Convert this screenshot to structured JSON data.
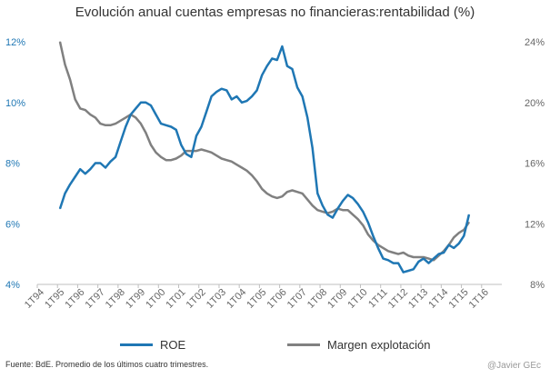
{
  "title": "Evolución anual cuentas empresas no financieras:rentabilidad  (%)",
  "footer": {
    "source": "Fuente: BdE. Promedio  de los últimos cuatro trimestres.",
    "credit": "@Javier GEc"
  },
  "colors": {
    "roe": "#1f77b4",
    "margin": "#808080",
    "axis": "#bfbfbf",
    "text": "#666666"
  },
  "chart_data": {
    "type": "line",
    "title": "Evolución anual cuentas empresas no financieras:rentabilidad  (%)",
    "x_labels": [
      "1T94",
      "1T95",
      "1T96",
      "1T97",
      "1T98",
      "1T99",
      "1T00",
      "1T01",
      "1T02",
      "1T03",
      "1T04",
      "1T05",
      "1T06",
      "1T07",
      "1T08",
      "1T09",
      "1T10",
      "1T11",
      "1T12",
      "1T13",
      "1T14",
      "1T15",
      "1T16"
    ],
    "quarters_total": 92,
    "y_left": {
      "min": 4,
      "max": 12,
      "ticks": [
        "4%",
        "6%",
        "8%",
        "10%",
        "12%"
      ],
      "tick_values": [
        4,
        6,
        8,
        10,
        12
      ]
    },
    "y_right": {
      "min": 8,
      "max": 24,
      "ticks": [
        "8%",
        "12%",
        "16%",
        "20%",
        "24%"
      ],
      "tick_values": [
        8,
        12,
        16,
        20,
        24
      ]
    },
    "legend": [
      "ROE",
      "Margen explotación"
    ],
    "series": [
      {
        "name": "ROE",
        "axis": "left",
        "start_index": 4,
        "values": [
          6.5,
          7.0,
          7.3,
          7.55,
          7.8,
          7.65,
          7.8,
          8.0,
          8.0,
          7.85,
          8.05,
          8.2,
          8.7,
          9.2,
          9.6,
          9.8,
          10.0,
          10.0,
          9.9,
          9.6,
          9.3,
          9.25,
          9.2,
          9.1,
          8.6,
          8.3,
          8.2,
          8.9,
          9.2,
          9.7,
          10.2,
          10.35,
          10.45,
          10.4,
          10.1,
          10.2,
          10.0,
          10.05,
          10.2,
          10.4,
          10.9,
          11.2,
          11.45,
          11.4,
          11.85,
          11.2,
          11.1,
          10.5,
          10.2,
          9.5,
          8.5,
          7.0,
          6.6,
          6.3,
          6.2,
          6.5,
          6.75,
          6.95,
          6.85,
          6.65,
          6.4,
          6.05,
          5.6,
          5.2,
          4.85,
          4.8,
          4.7,
          4.7,
          4.4,
          4.45,
          4.5,
          4.75,
          4.85,
          4.7,
          4.85,
          5.0,
          5.05,
          5.3,
          5.2,
          5.35,
          5.6,
          6.3
        ]
      },
      {
        "name": "Margen explotación",
        "axis": "right",
        "start_index": 4,
        "values": [
          24.0,
          22.5,
          21.5,
          20.2,
          19.6,
          19.5,
          19.2,
          19.0,
          18.6,
          18.5,
          18.5,
          18.6,
          18.8,
          19.0,
          19.2,
          19.0,
          18.6,
          18.0,
          17.2,
          16.7,
          16.4,
          16.2,
          16.2,
          16.3,
          16.5,
          16.8,
          16.8,
          16.8,
          16.9,
          16.8,
          16.7,
          16.5,
          16.3,
          16.2,
          16.1,
          15.9,
          15.7,
          15.5,
          15.2,
          14.8,
          14.3,
          14.0,
          13.8,
          13.7,
          13.8,
          14.1,
          14.2,
          14.1,
          14.0,
          13.6,
          13.2,
          12.9,
          12.8,
          12.7,
          12.8,
          13.0,
          12.9,
          12.9,
          12.6,
          12.3,
          11.9,
          11.3,
          10.9,
          10.6,
          10.4,
          10.2,
          10.1,
          10.0,
          10.1,
          9.9,
          9.8,
          9.8,
          9.8,
          9.7,
          9.6,
          9.9,
          10.2,
          10.6,
          11.1,
          11.4,
          11.6,
          12.1
        ]
      }
    ]
  }
}
